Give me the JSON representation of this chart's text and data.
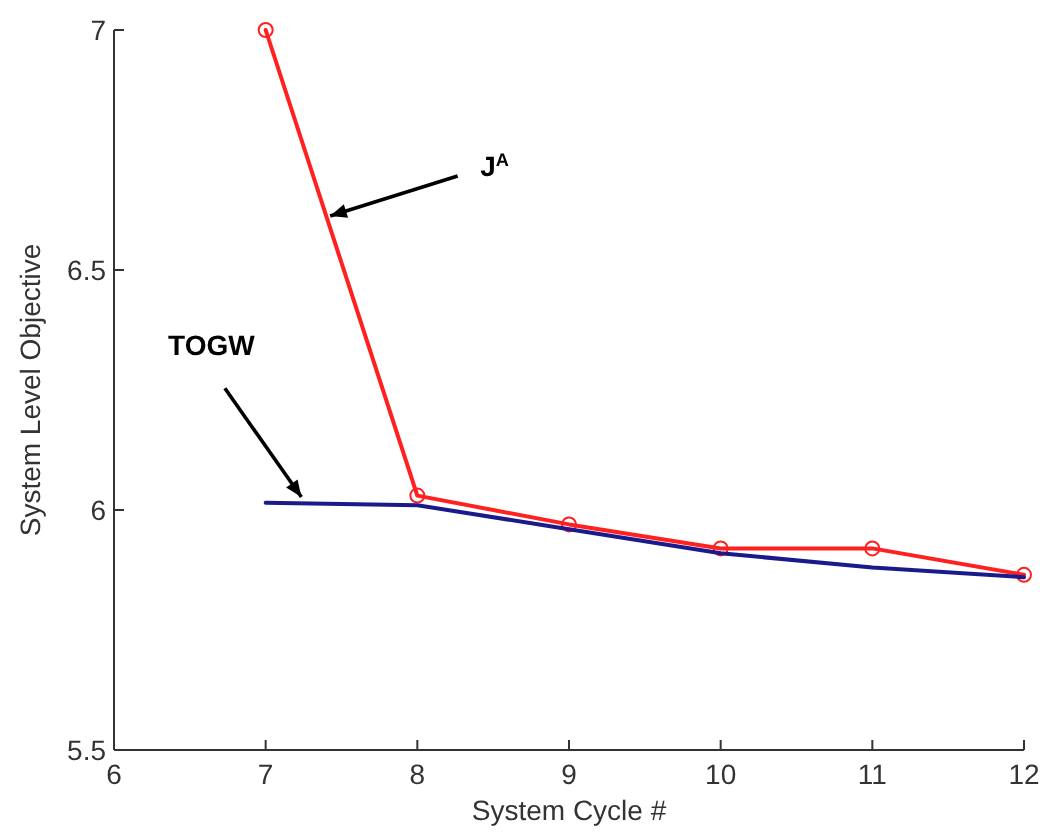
{
  "chart_data": {
    "type": "line",
    "xlabel": "System Cycle #",
    "ylabel": "System Level Objective",
    "x": [
      7,
      8,
      9,
      10,
      11,
      12
    ],
    "series": [
      {
        "color": "#ff2020",
        "marker": "circle",
        "values": [
          7.0,
          6.03,
          5.97,
          5.92,
          5.92,
          5.865
        ]
      },
      {
        "color": "#1a1a8c",
        "marker": "none",
        "values": [
          6.015,
          6.01,
          5.96,
          5.91,
          5.88,
          5.86
        ]
      }
    ],
    "xlim": [
      6,
      12
    ],
    "xticks": [
      6,
      7,
      8,
      9,
      10,
      11,
      12
    ],
    "ylim": [
      5.5,
      7
    ],
    "yticks": [
      5.5,
      6,
      6.5,
      7
    ],
    "grid": false,
    "annotations": [
      {
        "text": "J$^{A}$",
        "x": 7.4,
        "y": 6.61
      },
      {
        "text": "TOGW",
        "x": 7.25,
        "y": 6.02
      }
    ]
  }
}
